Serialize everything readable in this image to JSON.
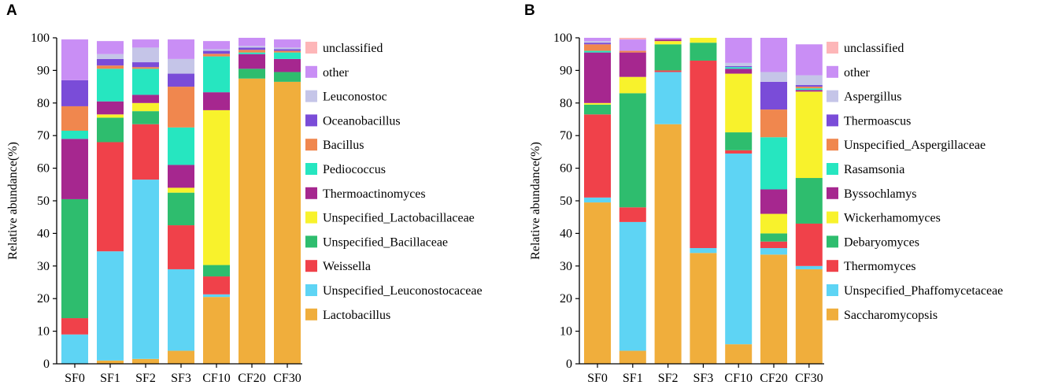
{
  "chart_data": [
    {
      "type": "bar",
      "stacked": true,
      "panel_label": "A",
      "title": "",
      "xlabel": "",
      "ylabel": "Relative abundance(%)",
      "ylim": [
        0,
        100
      ],
      "yticks": [
        "0",
        "10",
        "20",
        "30",
        "40",
        "50",
        "60",
        "70",
        "80",
        "90",
        "100"
      ],
      "categories": [
        "SF0",
        "SF1",
        "SF2",
        "SF3",
        "CF10",
        "CF20",
        "CF30"
      ],
      "series": [
        {
          "name": "Lactobacillus",
          "color": "#f0ae3c",
          "values": [
            0,
            1,
            1.5,
            4,
            20.5,
            87.5,
            86.5
          ]
        },
        {
          "name": "Unspecified_Leuconostocaceae",
          "color": "#5ed4f4",
          "values": [
            9,
            33.5,
            55,
            25,
            0.8,
            0,
            0
          ]
        },
        {
          "name": "Weissella",
          "color": "#f0414a",
          "values": [
            5,
            33.5,
            17,
            13.5,
            5.5,
            0,
            0
          ]
        },
        {
          "name": "Unspecified_Bacillaceae",
          "color": "#2ebd6e",
          "values": [
            36.5,
            7.5,
            4,
            10,
            3.5,
            3,
            3
          ]
        },
        {
          "name": "Unspecified_Lactobacillaceae",
          "color": "#f8f22c",
          "values": [
            0,
            1,
            2.5,
            1.5,
            47.5,
            0,
            0
          ]
        },
        {
          "name": "Thermoactinomyces",
          "color": "#a6278f",
          "values": [
            18.5,
            4,
            2.5,
            7,
            5.5,
            4.5,
            4
          ]
        },
        {
          "name": "Pediococcus",
          "color": "#26e6c0",
          "values": [
            2.5,
            10,
            8,
            11.5,
            11,
            0.5,
            2
          ]
        },
        {
          "name": "Bacillus",
          "color": "#f0874e",
          "values": [
            7.5,
            1,
            0.5,
            12.5,
            0.8,
            0.8,
            0.5
          ]
        },
        {
          "name": "Oceanobacillus",
          "color": "#7a4cd8",
          "values": [
            8,
            2,
            1.5,
            4,
            0.9,
            0.7,
            0.5
          ]
        },
        {
          "name": "Leuconostoc",
          "color": "#c5c5e8",
          "values": [
            0,
            1.5,
            4.5,
            4.5,
            0.5,
            0.5,
            0.5
          ]
        },
        {
          "name": "other",
          "color": "#c98ef5",
          "values": [
            12.5,
            4,
            2.5,
            6,
            2.5,
            2.5,
            2.5
          ]
        },
        {
          "name": "unclassified",
          "color": "#fdb6b8",
          "values": [
            0,
            0,
            0,
            0,
            0,
            0,
            0
          ]
        }
      ]
    },
    {
      "type": "bar",
      "stacked": true,
      "panel_label": "B",
      "title": "",
      "xlabel": "",
      "ylabel": "Relative abundance(%)",
      "ylim": [
        0,
        100
      ],
      "yticks": [
        "0",
        "10",
        "20",
        "30",
        "40",
        "50",
        "60",
        "70",
        "80",
        "90",
        "100"
      ],
      "categories": [
        "SF0",
        "SF1",
        "SF2",
        "SF3",
        "CF10",
        "CF20",
        "CF30"
      ],
      "series": [
        {
          "name": "Saccharomycopsis",
          "color": "#f0ae3c",
          "values": [
            49.5,
            4,
            73.5,
            34,
            6,
            33.5,
            29
          ]
        },
        {
          "name": "Unspecified_Phaffomycetaceae",
          "color": "#5ed4f4",
          "values": [
            1.5,
            39.5,
            16,
            1.5,
            58.5,
            2,
            1
          ]
        },
        {
          "name": "Thermomyces",
          "color": "#f0414a",
          "values": [
            25.5,
            4.5,
            0.5,
            57.5,
            1,
            2,
            13
          ]
        },
        {
          "name": "Debaryomyces",
          "color": "#2ebd6e",
          "values": [
            3,
            35,
            8,
            5.5,
            5.5,
            2.5,
            14
          ]
        },
        {
          "name": "Wickerhamomyces",
          "color": "#f8f22c",
          "values": [
            0.5,
            5,
            1,
            1.5,
            18,
            6,
            26.5
          ]
        },
        {
          "name": "Byssochlamys",
          "color": "#a6278f",
          "values": [
            15.5,
            7.5,
            0.5,
            0,
            1.5,
            7.5,
            0.5
          ]
        },
        {
          "name": "Rasamsonia",
          "color": "#26e6c0",
          "values": [
            0.5,
            0,
            0,
            0,
            0.5,
            16,
            0.5
          ]
        },
        {
          "name": "Unspecified_Aspergillaceae",
          "color": "#f0874e",
          "values": [
            2,
            0.5,
            0,
            0,
            0,
            8.5,
            0.5
          ]
        },
        {
          "name": "Thermoascus",
          "color": "#7a4cd8",
          "values": [
            0.5,
            0,
            0,
            0,
            0.3,
            8.5,
            0.5
          ]
        },
        {
          "name": "Aspergillus",
          "color": "#c5c5e8",
          "values": [
            0.5,
            0,
            0,
            0,
            1,
            3,
            3
          ]
        },
        {
          "name": "other",
          "color": "#c98ef5",
          "values": [
            1,
            3.5,
            0.5,
            0,
            7.7,
            10.5,
            9.5
          ]
        },
        {
          "name": "unclassified",
          "color": "#fdb6b8",
          "values": [
            0,
            0.5,
            0,
            0,
            0,
            0,
            0
          ]
        }
      ]
    }
  ]
}
